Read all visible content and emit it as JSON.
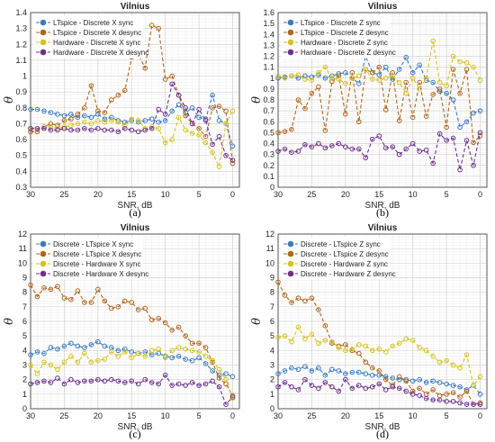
{
  "colors": {
    "blue": "#3a7bc0",
    "brown": "#b0651c",
    "yellow": "#d6c21e",
    "purple": "#6e2f8c",
    "grid": "#d2d2d2",
    "minor": "#ececec"
  },
  "chart_data": [
    {
      "type": "line",
      "panel": "a",
      "caption": "(a)",
      "title": "Vilnius",
      "xlabel": "SNR, dB",
      "ylabel": "θ",
      "xlim": [
        30,
        -1
      ],
      "ylim": [
        0.3,
        1.4
      ],
      "xticks": [
        30,
        25,
        20,
        15,
        10,
        5,
        0
      ],
      "yticks": [
        0.3,
        0.4,
        0.5,
        0.6,
        0.7,
        0.8,
        0.9,
        1,
        1.1,
        1.2,
        1.3,
        1.4
      ],
      "grid": true,
      "legend": "top-left",
      "x": [
        30,
        29,
        28,
        27,
        26,
        25,
        24,
        23,
        22,
        21,
        20,
        19,
        18,
        17,
        16,
        15,
        14,
        13,
        12,
        11,
        10,
        9,
        8,
        7,
        6,
        5,
        4,
        3,
        2,
        1,
        0
      ],
      "series": [
        {
          "name": "LTspice - Discrete X sync",
          "color": "blue",
          "values": [
            0.79,
            0.79,
            0.78,
            0.77,
            0.76,
            0.75,
            0.76,
            0.74,
            0.75,
            0.74,
            0.76,
            0.73,
            0.74,
            0.72,
            0.71,
            0.72,
            0.71,
            0.72,
            0.73,
            0.71,
            0.72,
            0.78,
            0.82,
            0.77,
            0.8,
            0.74,
            0.73,
            0.88,
            0.72,
            0.7,
            0.56
          ]
        },
        {
          "name": "LTspice - Discrete X desync",
          "color": "brown",
          "values": [
            0.65,
            0.65,
            0.68,
            0.7,
            0.69,
            0.72,
            0.73,
            0.76,
            0.8,
            0.94,
            0.78,
            0.77,
            0.85,
            0.88,
            0.91,
            1.12,
            1.14,
            1.05,
            1.32,
            1.3,
            0.98,
            1.0,
            0.88,
            0.75,
            0.7,
            0.67,
            0.62,
            0.8,
            0.81,
            0.78,
            0.45
          ]
        },
        {
          "name": "Hardware - Discrete X sync",
          "color": "yellow",
          "values": [
            0.67,
            0.67,
            0.68,
            0.68,
            0.67,
            0.68,
            0.69,
            0.7,
            0.71,
            0.7,
            0.72,
            0.71,
            0.72,
            0.71,
            0.69,
            0.73,
            0.72,
            0.67,
            0.68,
            0.67,
            0.58,
            0.6,
            0.74,
            0.66,
            0.64,
            0.63,
            0.58,
            0.52,
            0.43,
            0.7,
            0.78
          ]
        },
        {
          "name": "Hardware - Discrete X desync",
          "color": "purple",
          "values": [
            0.67,
            0.67,
            0.67,
            0.66,
            0.66,
            0.67,
            0.66,
            0.66,
            0.67,
            0.66,
            0.67,
            0.66,
            0.66,
            0.65,
            0.67,
            0.66,
            0.65,
            0.66,
            0.67,
            0.79,
            0.76,
            0.95,
            0.88,
            0.8,
            0.7,
            0.79,
            0.72,
            0.57,
            0.62,
            0.5,
            0.47
          ]
        }
      ]
    },
    {
      "type": "line",
      "panel": "b",
      "caption": "(b)",
      "title": "Vilnius",
      "xlabel": "SNR, dB",
      "ylabel": "θ",
      "xlim": [
        30,
        -1
      ],
      "ylim": [
        0,
        1.6
      ],
      "xticks": [
        30,
        25,
        20,
        15,
        10,
        5,
        0
      ],
      "yticks": [
        0,
        0.1,
        0.2,
        0.3,
        0.4,
        0.5,
        0.6,
        0.7,
        0.8,
        0.9,
        1,
        1.1,
        1.2,
        1.3,
        1.4,
        1.5,
        1.6
      ],
      "grid": true,
      "legend": "top-left",
      "x": [
        30,
        29,
        28,
        27,
        26,
        25,
        24,
        23,
        22,
        21,
        20,
        19,
        18,
        17,
        16,
        15,
        14,
        13,
        12,
        11,
        10,
        9,
        8,
        7,
        6,
        5,
        4,
        3,
        2,
        1,
        0
      ],
      "series": [
        {
          "name": "LTspice - Discrete Z sync",
          "color": "blue",
          "values": [
            1.0,
            1.01,
            1.02,
            1.0,
            1.02,
            1.01,
            1.03,
            1.0,
            1.02,
            1.04,
            1.05,
            1.0,
            0.95,
            1.2,
            1.05,
            1.03,
            1.1,
            0.99,
            1.08,
            1.19,
            1.05,
            1.12,
            0.98,
            0.96,
            0.88,
            0.86,
            0.8,
            0.55,
            0.6,
            0.68,
            0.7
          ]
        },
        {
          "name": "LTspice - Discrete Z desync",
          "color": "brown",
          "values": [
            0.5,
            0.51,
            0.53,
            0.8,
            0.72,
            0.86,
            0.92,
            0.52,
            0.97,
            1.02,
            0.67,
            1.05,
            0.6,
            1.08,
            1.05,
            1.1,
            0.71,
            1.05,
            0.61,
            0.96,
            0.64,
            0.96,
            0.65,
            0.85,
            0.9,
            0.55,
            1.08,
            0.86,
            1.08,
            0.41,
            0.47
          ]
        },
        {
          "name": "Hardware - Discrete Z sync",
          "color": "yellow",
          "values": [
            1.02,
            1.0,
            1.02,
            1.03,
            0.99,
            0.98,
            1.05,
            1.1,
            1.0,
            0.99,
            0.95,
            1.0,
            1.02,
            1.08,
            0.99,
            0.98,
            1.0,
            1.02,
            0.96,
            0.86,
            1.0,
            0.9,
            1.0,
            1.34,
            0.96,
            0.93,
            1.2,
            1.15,
            1.14,
            1.1,
            0.98
          ]
        },
        {
          "name": "Hardware - Discrete Z desync",
          "color": "purple",
          "values": [
            0.33,
            0.35,
            0.32,
            0.33,
            0.39,
            0.37,
            0.4,
            0.36,
            0.38,
            0.4,
            0.37,
            0.35,
            0.35,
            0.27,
            0.44,
            0.47,
            0.36,
            0.37,
            0.3,
            0.35,
            0.4,
            0.33,
            0.34,
            0.22,
            0.49,
            0.43,
            0.45,
            0.16,
            0.43,
            0.2,
            0.5
          ]
        }
      ]
    },
    {
      "type": "line",
      "panel": "c",
      "caption": "(c)",
      "title": "Vilnius",
      "xlabel": "SNR, dB",
      "ylabel": "θ",
      "xlim": [
        30,
        -1
      ],
      "ylim": [
        0,
        12
      ],
      "xticks": [
        30,
        25,
        20,
        15,
        10,
        5,
        0
      ],
      "yticks": [
        0,
        1,
        2,
        3,
        4,
        5,
        6,
        7,
        8,
        9,
        10,
        11,
        12
      ],
      "grid": true,
      "legend": "top-left",
      "x": [
        30,
        29,
        28,
        27,
        26,
        25,
        24,
        23,
        22,
        21,
        20,
        19,
        18,
        17,
        16,
        15,
        14,
        13,
        12,
        11,
        10,
        9,
        8,
        7,
        6,
        5,
        4,
        3,
        2,
        1,
        0
      ],
      "series": [
        {
          "name": "Discrete - LTspice X sync",
          "color": "blue",
          "values": [
            3.7,
            3.9,
            3.8,
            4.2,
            4.1,
            4.3,
            4.5,
            4.3,
            4.2,
            4.4,
            4.6,
            4.3,
            4.2,
            4.0,
            4.1,
            3.9,
            3.8,
            3.9,
            3.7,
            3.8,
            3.6,
            3.5,
            3.6,
            3.4,
            3.3,
            3.5,
            3.1,
            2.6,
            2.3,
            2.4,
            2.2
          ]
        },
        {
          "name": "Discrete - LTspice X desync",
          "color": "brown",
          "values": [
            8.5,
            7.7,
            8.3,
            8.2,
            8.4,
            7.6,
            7.5,
            8.1,
            7.3,
            7.3,
            8.2,
            7.4,
            6.9,
            7.0,
            7.4,
            7.3,
            6.8,
            6.9,
            6.1,
            6.2,
            5.9,
            5.4,
            5.6,
            5.0,
            4.5,
            4.5,
            4.2,
            3.2,
            2.1,
            1.7,
            0.9
          ]
        },
        {
          "name": "Discrete - Hardware X sync",
          "color": "yellow",
          "values": [
            3.0,
            2.4,
            3.2,
            3.0,
            2.7,
            3.2,
            3.6,
            3.2,
            3.8,
            3.2,
            3.3,
            3.4,
            3.9,
            3.6,
            3.9,
            3.5,
            3.8,
            3.6,
            4.0,
            4.1,
            3.5,
            4.0,
            4.2,
            4.1,
            4.0,
            3.9,
            3.6,
            3.3,
            2.7,
            2.0,
            0.7
          ]
        },
        {
          "name": "Discrete - Hardware X desync",
          "color": "purple",
          "values": [
            1.7,
            1.8,
            1.9,
            1.8,
            2.1,
            1.7,
            2.0,
            1.8,
            1.9,
            1.9,
            2.0,
            1.9,
            2.0,
            1.9,
            1.8,
            1.9,
            1.7,
            2.0,
            1.8,
            1.7,
            2.3,
            1.6,
            1.7,
            1.6,
            1.8,
            1.6,
            1.7,
            1.9,
            1.5,
            0.3,
            0.8
          ]
        }
      ]
    },
    {
      "type": "line",
      "panel": "d",
      "caption": "(d)",
      "title": "Vilnius",
      "xlabel": "SNR, dB",
      "ylabel": "θ",
      "xlim": [
        30,
        -1
      ],
      "ylim": [
        0,
        12
      ],
      "xticks": [
        30,
        25,
        20,
        15,
        10,
        5,
        0
      ],
      "yticks": [
        0,
        1,
        2,
        3,
        4,
        5,
        6,
        7,
        8,
        9,
        10,
        11,
        12
      ],
      "grid": true,
      "legend": "top-left",
      "x": [
        30,
        29,
        28,
        27,
        26,
        25,
        24,
        23,
        22,
        21,
        20,
        19,
        18,
        17,
        16,
        15,
        14,
        13,
        12,
        11,
        10,
        9,
        8,
        7,
        6,
        5,
        4,
        3,
        2,
        1,
        0
      ],
      "series": [
        {
          "name": "Discrete - LTspice Z sync",
          "color": "blue",
          "values": [
            2.4,
            2.6,
            2.8,
            2.7,
            2.9,
            2.6,
            2.8,
            2.3,
            2.7,
            2.6,
            2.4,
            2.5,
            2.5,
            2.4,
            2.3,
            2.3,
            2.2,
            2.1,
            2.0,
            2.0,
            1.9,
            2.0,
            1.8,
            1.9,
            1.8,
            1.7,
            1.6,
            1.5,
            1.3,
            1.6,
            1.0
          ]
        },
        {
          "name": "Discrete - LTspice Z desync",
          "color": "brown",
          "values": [
            8.7,
            7.8,
            7.3,
            7.6,
            7.4,
            7.6,
            6.8,
            5.7,
            4.5,
            4.3,
            4.4,
            4.0,
            3.8,
            3.2,
            2.8,
            2.6,
            2.0,
            1.6,
            2.2,
            1.9,
            1.2,
            1.4,
            1.0,
            1.3,
            0.9,
            1.0,
            1.1,
            0.8,
            1.2,
            0.3,
            0.4
          ]
        },
        {
          "name": "Discrete - Hardware Z sync",
          "color": "yellow",
          "values": [
            4.9,
            5.0,
            4.6,
            5.6,
            4.8,
            5.1,
            4.5,
            4.7,
            4.6,
            4.2,
            4.0,
            4.1,
            4.4,
            4.3,
            4.0,
            4.1,
            3.9,
            4.3,
            4.5,
            4.8,
            4.7,
            4.2,
            4.0,
            3.6,
            3.2,
            3.3,
            3.0,
            2.8,
            3.7,
            1.6,
            2.2
          ]
        },
        {
          "name": "Discrete - Hardware Z desync",
          "color": "purple",
          "values": [
            1.5,
            1.8,
            1.5,
            1.3,
            2.0,
            1.6,
            1.4,
            1.8,
            1.5,
            1.2,
            2.0,
            1.4,
            1.6,
            1.4,
            1.5,
            1.7,
            1.3,
            1.5,
            1.4,
            1.2,
            1.0,
            0.9,
            0.7,
            0.6,
            0.6,
            0.5,
            0.5,
            0.4,
            0.3,
            0.3,
            0.3
          ]
        }
      ]
    }
  ]
}
